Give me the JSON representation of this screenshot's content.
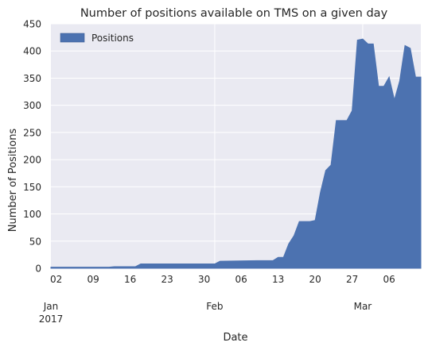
{
  "chart_data": {
    "type": "area",
    "title": "Number of positions available on TMS on a given day",
    "xlabel": "Date",
    "ylabel": "Number of Positions",
    "x_range": [
      "2017-01-01",
      "2017-03-12"
    ],
    "ylim": [
      0,
      450
    ],
    "y_ticks": [
      "0",
      "50",
      "100",
      "150",
      "200",
      "250",
      "300",
      "350",
      "400",
      "450"
    ],
    "x_minor_ticks": [
      {
        "date": "2017-01-02",
        "label": "02"
      },
      {
        "date": "2017-01-09",
        "label": "09"
      },
      {
        "date": "2017-01-16",
        "label": "16"
      },
      {
        "date": "2017-01-23",
        "label": "23"
      },
      {
        "date": "2017-01-30",
        "label": "30"
      },
      {
        "date": "2017-02-06",
        "label": "06"
      },
      {
        "date": "2017-02-13",
        "label": "13"
      },
      {
        "date": "2017-02-20",
        "label": "20"
      },
      {
        "date": "2017-02-27",
        "label": "27"
      },
      {
        "date": "2017-03-06",
        "label": "06"
      }
    ],
    "x_major_ticks": [
      {
        "date": "2017-01-01",
        "label": "Jan",
        "sublabel": "2017"
      },
      {
        "date": "2017-02-01",
        "label": "Feb",
        "sublabel": ""
      },
      {
        "date": "2017-03-01",
        "label": "Mar",
        "sublabel": ""
      }
    ],
    "legend": {
      "position": "top-left"
    },
    "grid": true,
    "colors": {
      "fill": "#4c72b0",
      "background": "#eaeaf2",
      "grid": "#ffffff",
      "text": "#262626"
    },
    "series": [
      {
        "name": "Positions",
        "points": [
          {
            "x": "2017-01-01",
            "y": 2
          },
          {
            "x": "2017-01-12",
            "y": 2
          },
          {
            "x": "2017-01-13",
            "y": 3
          },
          {
            "x": "2017-01-17",
            "y": 3
          },
          {
            "x": "2017-01-18",
            "y": 8
          },
          {
            "x": "2017-02-01",
            "y": 8
          },
          {
            "x": "2017-02-02",
            "y": 13
          },
          {
            "x": "2017-02-09",
            "y": 14
          },
          {
            "x": "2017-02-12",
            "y": 14
          },
          {
            "x": "2017-02-13",
            "y": 20
          },
          {
            "x": "2017-02-14",
            "y": 20
          },
          {
            "x": "2017-02-15",
            "y": 45
          },
          {
            "x": "2017-02-16",
            "y": 60
          },
          {
            "x": "2017-02-17",
            "y": 86
          },
          {
            "x": "2017-02-19",
            "y": 86
          },
          {
            "x": "2017-02-20",
            "y": 88
          },
          {
            "x": "2017-02-21",
            "y": 140
          },
          {
            "x": "2017-02-22",
            "y": 180
          },
          {
            "x": "2017-02-23",
            "y": 190
          },
          {
            "x": "2017-02-24",
            "y": 272
          },
          {
            "x": "2017-02-26",
            "y": 272
          },
          {
            "x": "2017-02-27",
            "y": 290
          },
          {
            "x": "2017-02-28",
            "y": 420
          },
          {
            "x": "2017-03-01",
            "y": 422
          },
          {
            "x": "2017-03-02",
            "y": 413
          },
          {
            "x": "2017-03-03",
            "y": 413
          },
          {
            "x": "2017-03-04",
            "y": 335
          },
          {
            "x": "2017-03-05",
            "y": 335
          },
          {
            "x": "2017-03-06",
            "y": 352
          },
          {
            "x": "2017-03-07",
            "y": 310
          },
          {
            "x": "2017-03-08",
            "y": 345
          },
          {
            "x": "2017-03-09",
            "y": 410
          },
          {
            "x": "2017-03-10",
            "y": 405
          },
          {
            "x": "2017-03-11",
            "y": 352
          },
          {
            "x": "2017-03-12",
            "y": 352
          }
        ]
      }
    ]
  }
}
